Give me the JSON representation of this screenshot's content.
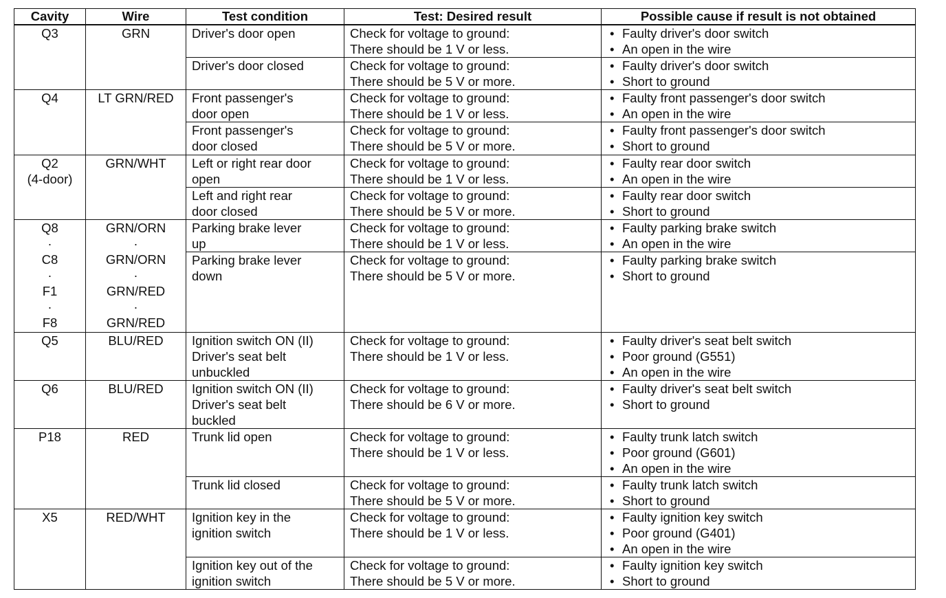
{
  "headers": {
    "cavity": "Cavity",
    "wire": "Wire",
    "condition": "Test condition",
    "result": "Test: Desired result",
    "cause": "Possible cause if result is not obtained"
  },
  "bullet": "•",
  "rows": [
    {
      "cavity": "Q3",
      "wire": "GRN",
      "tests": [
        {
          "condition": "Driver's door open",
          "result": "Check for voltage to ground:\nThere should be 1 V or less.",
          "causes": [
            "Faulty driver's door switch",
            "An open in the wire"
          ]
        },
        {
          "condition": "Driver's door closed",
          "result": "Check for voltage to ground:\nThere should be 5 V or more.",
          "causes": [
            "Faulty driver's door switch",
            "Short to ground"
          ]
        }
      ]
    },
    {
      "cavity": "Q4",
      "wire": "LT GRN/RED",
      "tests": [
        {
          "condition": "Front passenger's\ndoor open",
          "result": "Check for voltage to ground:\nThere should be 1 V or less.",
          "causes": [
            "Faulty front passenger's door switch",
            "An open in the wire"
          ]
        },
        {
          "condition": "Front passenger's\ndoor closed",
          "result": "Check for voltage to ground:\nThere should be 5 V or more.",
          "causes": [
            "Faulty front passenger's door switch",
            "Short to ground"
          ]
        }
      ]
    },
    {
      "cavity": "Q2\n(4-door)",
      "wire": "GRN/WHT",
      "tests": [
        {
          "condition": "Left or right rear door\nopen",
          "result": "Check for voltage to ground:\nThere should be 1 V or less.",
          "causes": [
            "Faulty rear door switch",
            "An open in the wire"
          ]
        },
        {
          "condition": "Left and right rear\ndoor closed",
          "result": "Check for voltage to ground:\nThere should be 5 V or more.",
          "causes": [
            "Faulty rear door switch",
            "Short to ground"
          ]
        }
      ]
    },
    {
      "cavity": "Q8\n·\nC8\n·\nF1\n·\nF8",
      "wire": "GRN/ORN\n·\nGRN/ORN\n·\nGRN/RED\n·\nGRN/RED",
      "tests": [
        {
          "condition": "Parking brake lever\nup",
          "result": "Check for voltage to ground:\nThere should be 1 V or less.",
          "causes": [
            "Faulty parking brake switch",
            "An open in the wire"
          ]
        },
        {
          "condition": "Parking brake lever\ndown",
          "result": "Check for voltage to ground:\nThere should be 5 V or more.",
          "causes": [
            "Faulty parking brake switch",
            "Short to ground"
          ]
        }
      ]
    },
    {
      "cavity": "Q5",
      "wire": "BLU/RED",
      "tests": [
        {
          "condition": "Ignition switch ON (II)\nDriver's seat belt\nunbuckled",
          "result": "Check for voltage to ground:\nThere should be 1 V or less.",
          "causes": [
            "Faulty driver's seat belt switch",
            "Poor ground (G551)",
            "An open in the wire"
          ]
        }
      ]
    },
    {
      "cavity": "Q6",
      "wire": "BLU/RED",
      "tests": [
        {
          "condition": "Ignition switch ON (II)\nDriver's seat belt\nbuckled",
          "result": "Check for voltage to ground:\nThere should be 6 V or more.",
          "causes": [
            "Faulty driver's seat belt switch",
            "Short to ground"
          ]
        }
      ]
    },
    {
      "cavity": "P18",
      "wire": "RED",
      "tests": [
        {
          "condition": "Trunk lid open",
          "result": "Check for voltage to ground:\nThere should be 1 V or less.",
          "causes": [
            "Faulty trunk latch switch",
            "Poor ground (G601)",
            "An open in the wire"
          ]
        },
        {
          "condition": "Trunk lid closed",
          "result": "Check for voltage to ground:\nThere should be 5 V or more.",
          "causes": [
            "Faulty trunk latch switch",
            "Short to ground"
          ]
        }
      ]
    },
    {
      "cavity": "X5",
      "wire": "RED/WHT",
      "tests": [
        {
          "condition": "Ignition key in the\nignition switch",
          "result": "Check for voltage to ground:\nThere should be 1 V or less.",
          "causes": [
            "Faulty ignition key switch",
            "Poor ground (G401)",
            "An open in the wire"
          ]
        },
        {
          "condition": "Ignition key out of the\nignition switch",
          "result": "Check for voltage to ground:\nThere should be 5 V or more.",
          "causes": [
            "Faulty ignition key switch",
            "Short to ground"
          ]
        }
      ]
    }
  ]
}
